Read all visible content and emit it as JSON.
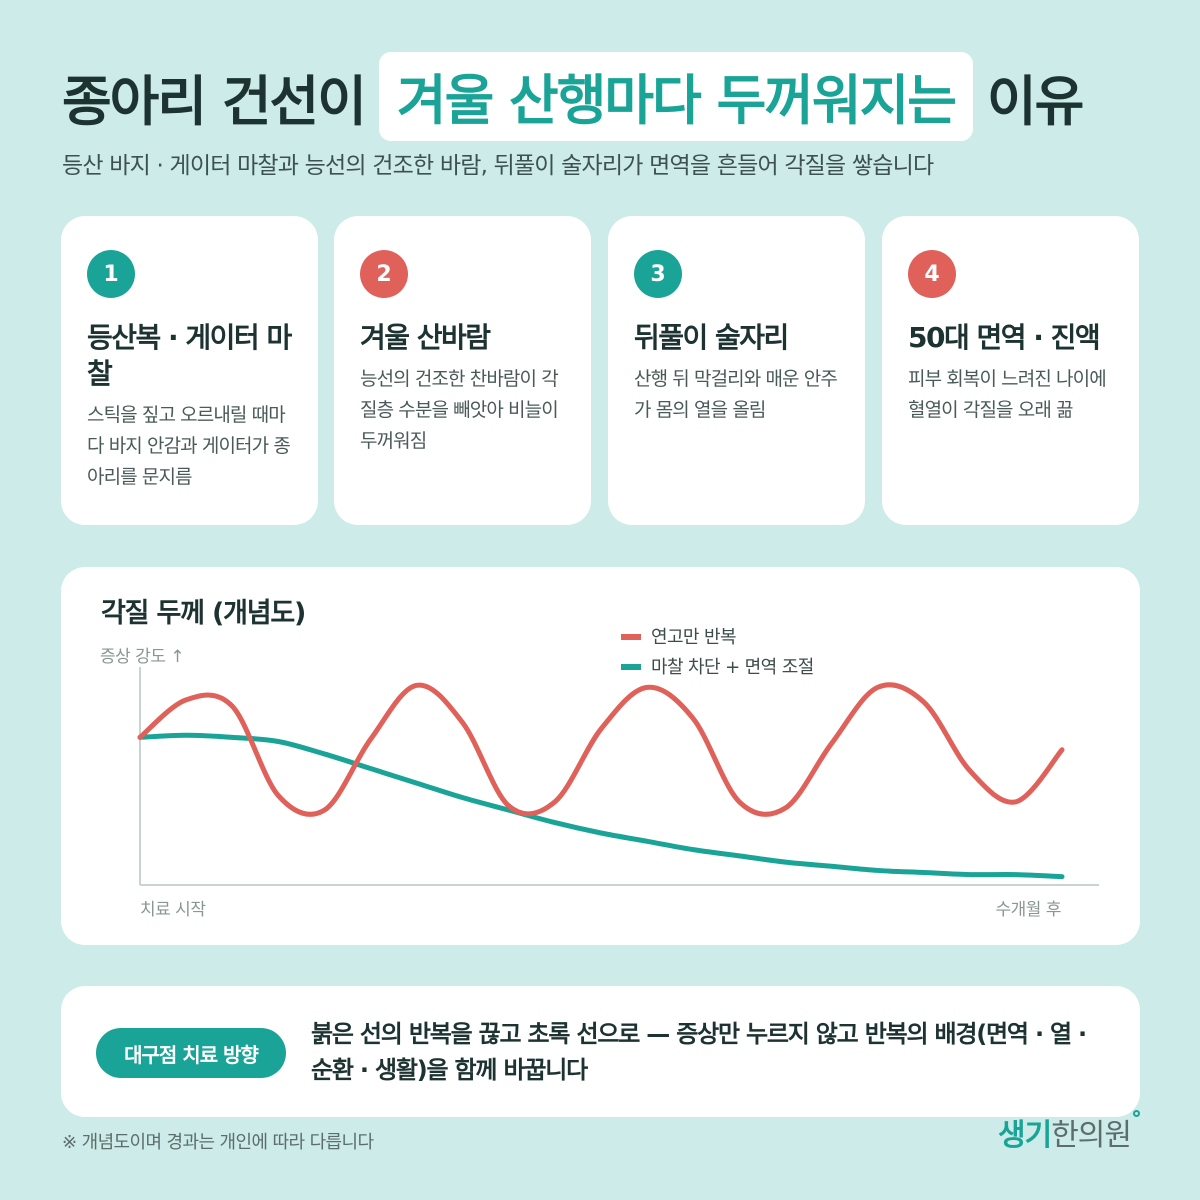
{
  "header": {
    "title_prefix": "종아리 건선이",
    "title_highlight": "겨울 산행마다 두꺼워지는",
    "title_suffix": "이유",
    "subtitle": "등산 바지 · 게이터 마찰과 능선의 건조한 바람, 뒤풀이 술자리가 면역을 흔들어 각질을 쌓습니다"
  },
  "colors": {
    "teal": "#1aa497",
    "red": "#e0605a",
    "background": "#cdebe8"
  },
  "cards": [
    {
      "number": "1",
      "title": "등산복 · 게이터 마찰",
      "desc": "스틱을 짚고 오르내릴 때마다 바지 안감과 게이터가 종아리를 문지름",
      "color": "teal"
    },
    {
      "number": "2",
      "title": "겨울 산바람",
      "desc": "능선의 건조한 찬바람이 각질층 수분을 빼앗아 비늘이 두꺼워짐",
      "color": "red"
    },
    {
      "number": "3",
      "title": "뒤풀이 술자리",
      "desc": "산행 뒤 막걸리와 매운 안주가 몸의 열을 올림",
      "color": "teal"
    },
    {
      "number": "4",
      "title": "50대 면역 · 진액",
      "desc": "피부 회복이 느려진 나이에 혈열이 각질을 오래 끎",
      "color": "red"
    }
  ],
  "chart_data": {
    "type": "line",
    "title": "각질 두께 (개념도)",
    "ylabel": "증상 강도 ↑",
    "x_start_label": "치료 시작",
    "x_end_label": "수개월 후",
    "x": [
      0,
      0.05,
      0.1,
      0.15,
      0.2,
      0.25,
      0.3,
      0.35,
      0.4,
      0.45,
      0.5,
      0.55,
      0.6,
      0.65,
      0.7,
      0.75,
      0.8,
      0.85,
      0.9,
      0.95,
      1.0
    ],
    "xlim": [
      0,
      1
    ],
    "ylim": [
      0,
      1
    ],
    "grid": false,
    "legend_position": "top-center",
    "series": [
      {
        "name": "연고만 반복",
        "color": "#e0605a",
        "values": [
          0.71,
          0.89,
          0.86,
          0.43,
          0.36,
          0.7,
          0.96,
          0.78,
          0.38,
          0.4,
          0.75,
          0.95,
          0.8,
          0.4,
          0.37,
          0.68,
          0.95,
          0.88,
          0.55,
          0.4,
          0.65
        ]
      },
      {
        "name": "마찰 차단 + 면역 조절",
        "color": "#1aa497",
        "values": [
          0.71,
          0.72,
          0.71,
          0.69,
          0.63,
          0.56,
          0.49,
          0.42,
          0.36,
          0.3,
          0.25,
          0.21,
          0.17,
          0.14,
          0.11,
          0.09,
          0.07,
          0.06,
          0.05,
          0.05,
          0.04
        ]
      }
    ]
  },
  "bottom": {
    "pill_label": "대구점 치료 방향",
    "text": "붉은 선의 반복을 끊고 초록 선으로 — 증상만 누르지 않고 반복의 배경(면역 · 열 · 순환 · 생활)을 함께 바꿉니다"
  },
  "footnote": "※ 개념도이며 경과는 개인에 따라 다릅니다",
  "logo": {
    "part1": "생기",
    "part2": "한의원"
  }
}
